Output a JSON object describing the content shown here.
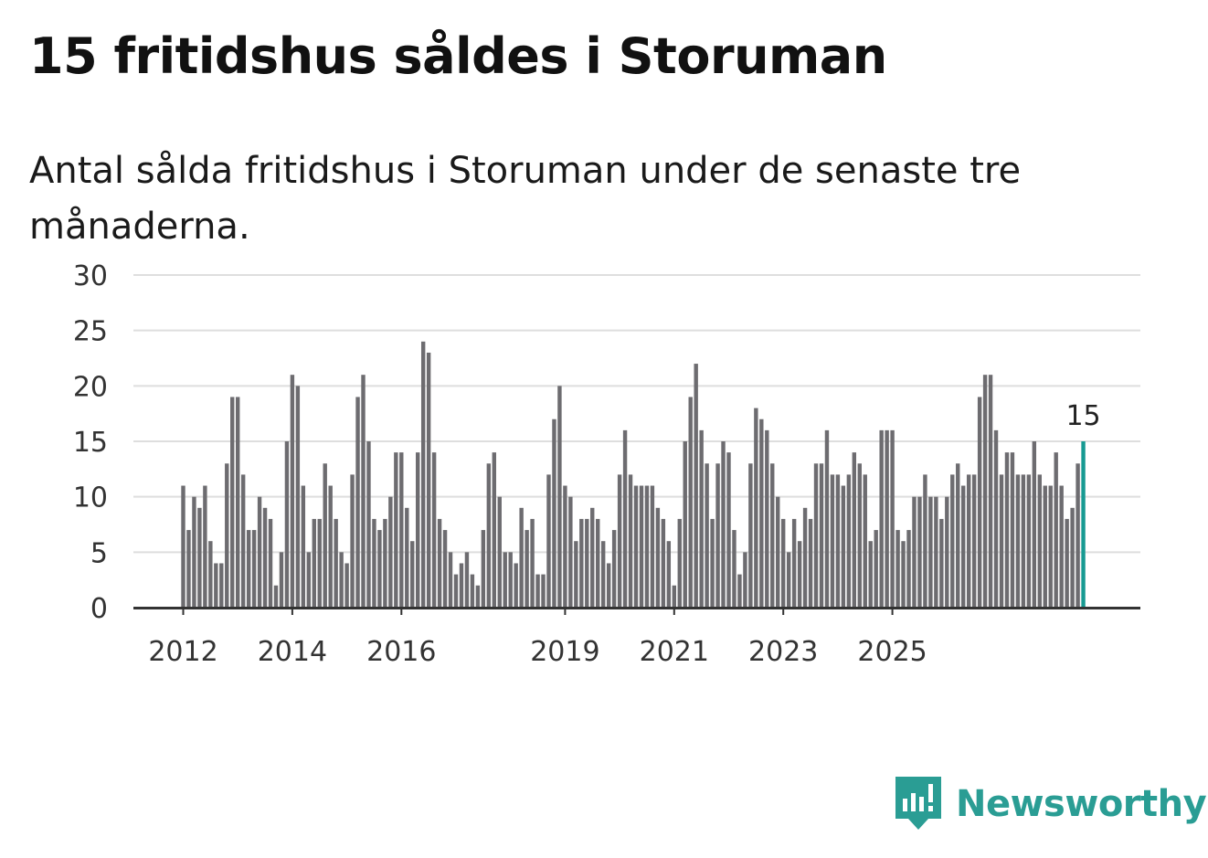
{
  "chart_data": {
    "type": "bar",
    "title": "15 fritidshus såldes i Storuman",
    "subtitle": "Antal sålda fritidshus i Storuman under de senaste tre månaderna.",
    "xlabel": "",
    "ylabel": "",
    "ylim": [
      0,
      30
    ],
    "yticks": [
      "0",
      "5",
      "10",
      "15",
      "20",
      "25",
      "30"
    ],
    "xticks": [
      {
        "label": "2012",
        "index": 0
      },
      {
        "label": "2014",
        "index": 20
      },
      {
        "label": "2016",
        "index": 40
      },
      {
        "label": "2019",
        "index": 70
      },
      {
        "label": "2021",
        "index": 90
      },
      {
        "label": "2023",
        "index": 110
      },
      {
        "label": "2025",
        "index": 130
      }
    ],
    "values": [
      11,
      7,
      10,
      9,
      11,
      6,
      4,
      4,
      13,
      19,
      19,
      12,
      7,
      7,
      10,
      9,
      8,
      2,
      5,
      15,
      21,
      20,
      11,
      5,
      8,
      8,
      13,
      11,
      8,
      5,
      4,
      12,
      19,
      21,
      15,
      8,
      7,
      8,
      10,
      14,
      14,
      9,
      6,
      14,
      24,
      23,
      14,
      8,
      7,
      5,
      3,
      4,
      5,
      3,
      2,
      7,
      13,
      14,
      10,
      5,
      5,
      4,
      9,
      7,
      8,
      3,
      3,
      12,
      17,
      20,
      11,
      10,
      6,
      8,
      8,
      9,
      8,
      6,
      4,
      7,
      12,
      16,
      12,
      11,
      11,
      11,
      11,
      9,
      8,
      6,
      2,
      8,
      15,
      19,
      22,
      16,
      13,
      8,
      13,
      15,
      14,
      7,
      3,
      5,
      13,
      18,
      17,
      16,
      13,
      10,
      8,
      5,
      8,
      6,
      9,
      8,
      13,
      13,
      16,
      12,
      12,
      11,
      12,
      14,
      13,
      12,
      6,
      7,
      16,
      16,
      16,
      7,
      6,
      7,
      10,
      10,
      12,
      10,
      10,
      8,
      10,
      12,
      13,
      11,
      12,
      12,
      19,
      21,
      21,
      16,
      12,
      14,
      14,
      12,
      12,
      12,
      15,
      12,
      11,
      11,
      14,
      11,
      8,
      9,
      13,
      15
    ],
    "highlight": {
      "index": 165,
      "label": "15"
    },
    "colors": {
      "bar": "#6d6c70",
      "highlight": "#179a92",
      "grid": "#dedede",
      "axis": "#333333"
    }
  },
  "brand": {
    "name": "Newsworthy",
    "icon": "newsworthy-logo-icon"
  }
}
